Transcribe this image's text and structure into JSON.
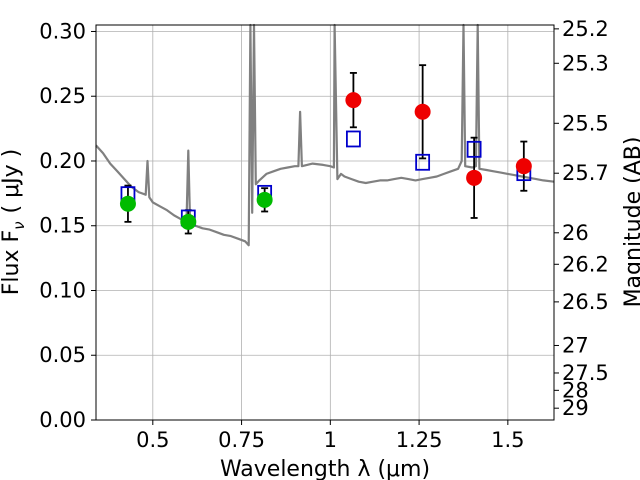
{
  "chart_data": {
    "type": "scatter",
    "xlabel": "Wavelength  λ (μm)",
    "ylabel": "Flux  F",
    "ylabel_sub": "ν",
    "ylabel_unit": "( μJy )",
    "y2label": "Magnitude (AB)",
    "xlim": [
      0.34,
      1.63
    ],
    "ylim": [
      0.0,
      0.305
    ],
    "grid": true,
    "x_ticks": [
      {
        "value": 0.5,
        "label": "0.5"
      },
      {
        "value": 0.75,
        "label": "0.75"
      },
      {
        "value": 1.0,
        "label": "1"
      },
      {
        "value": 1.25,
        "label": "1.25"
      },
      {
        "value": 1.5,
        "label": "1.5"
      }
    ],
    "y_ticks": [
      {
        "value": 0.0,
        "label": "0.00"
      },
      {
        "value": 0.05,
        "label": "0.05"
      },
      {
        "value": 0.1,
        "label": "0.10"
      },
      {
        "value": 0.15,
        "label": "0.15"
      },
      {
        "value": 0.2,
        "label": "0.20"
      },
      {
        "value": 0.25,
        "label": "0.25"
      },
      {
        "value": 0.3,
        "label": "0.30"
      }
    ],
    "y2_ticks": [
      {
        "value": 25.2,
        "label": "25.2"
      },
      {
        "value": 25.3,
        "label": "25.3"
      },
      {
        "value": 25.5,
        "label": "25.5"
      },
      {
        "value": 25.7,
        "label": "25.7"
      },
      {
        "value": 26.0,
        "label": "26"
      },
      {
        "value": 26.2,
        "label": "26.2"
      },
      {
        "value": 26.5,
        "label": "26.5"
      },
      {
        "value": 27.0,
        "label": "27"
      },
      {
        "value": 27.5,
        "label": "27.5"
      },
      {
        "value": 28.0,
        "label": "28"
      },
      {
        "value": 29.0,
        "label": "29"
      }
    ],
    "series": [
      {
        "kind": "line",
        "color": "#808080",
        "x": [
          0.34,
          0.36,
          0.38,
          0.4,
          0.42,
          0.44,
          0.46,
          0.48,
          0.485,
          0.49,
          0.5,
          0.52,
          0.54,
          0.56,
          0.58,
          0.595,
          0.6,
          0.605,
          0.62,
          0.64,
          0.66,
          0.68,
          0.7,
          0.72,
          0.74,
          0.76,
          0.77,
          0.775,
          0.78,
          0.785,
          0.79,
          0.8,
          0.82,
          0.84,
          0.86,
          0.88,
          0.9,
          0.91,
          0.915,
          0.92,
          0.95,
          0.98,
          1.0,
          1.01,
          1.012,
          1.02,
          1.03,
          1.04,
          1.06,
          1.08,
          1.1,
          1.12,
          1.14,
          1.16,
          1.18,
          1.2,
          1.22,
          1.24,
          1.26,
          1.28,
          1.3,
          1.32,
          1.34,
          1.36,
          1.37,
          1.375,
          1.38,
          1.4,
          1.41,
          1.415,
          1.42,
          1.44,
          1.46,
          1.48,
          1.5,
          1.52,
          1.54,
          1.56,
          1.58,
          1.6,
          1.63
        ],
        "y": [
          0.212,
          0.206,
          0.198,
          0.192,
          0.186,
          0.18,
          0.176,
          0.174,
          0.2,
          0.172,
          0.168,
          0.165,
          0.162,
          0.158,
          0.155,
          0.153,
          0.208,
          0.152,
          0.15,
          0.148,
          0.147,
          0.145,
          0.143,
          0.142,
          0.14,
          0.138,
          0.135,
          0.305,
          0.16,
          0.305,
          0.182,
          0.185,
          0.19,
          0.192,
          0.194,
          0.195,
          0.196,
          0.196,
          0.238,
          0.196,
          0.198,
          0.197,
          0.196,
          0.195,
          0.305,
          0.186,
          0.19,
          0.188,
          0.186,
          0.184,
          0.183,
          0.184,
          0.185,
          0.185,
          0.186,
          0.187,
          0.186,
          0.185,
          0.186,
          0.187,
          0.188,
          0.19,
          0.192,
          0.194,
          0.2,
          0.305,
          0.196,
          0.195,
          0.196,
          0.305,
          0.194,
          0.193,
          0.192,
          0.191,
          0.19,
          0.189,
          0.188,
          0.187,
          0.186,
          0.185,
          0.184
        ]
      },
      {
        "kind": "square",
        "color": "#0000cc",
        "x": [
          0.43,
          0.6,
          0.815,
          1.065,
          1.26,
          1.405,
          1.545
        ],
        "y": [
          0.174,
          0.156,
          0.175,
          0.217,
          0.199,
          0.209,
          0.191
        ]
      },
      {
        "kind": "circle",
        "color": "#00bb00",
        "x": [
          0.43,
          0.6,
          0.815
        ],
        "y": [
          0.167,
          0.153,
          0.17
        ],
        "yerr": [
          0.014,
          0.009,
          0.009
        ]
      },
      {
        "kind": "circle",
        "color": "#ee0000",
        "x": [
          1.065,
          1.26,
          1.405,
          1.545
        ],
        "y": [
          0.247,
          0.238,
          0.187,
          0.196
        ],
        "yerr": [
          0.021,
          0.036,
          0.031,
          0.019
        ]
      }
    ]
  }
}
